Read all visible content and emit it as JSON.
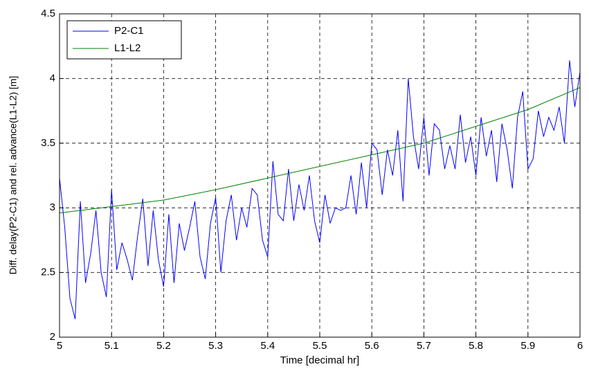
{
  "chart_data": {
    "type": "line",
    "xlabel": "Time [decimal hr]",
    "ylabel": "Diff. delay(P2-C1) and rel. advance(L1-L2)  [m]",
    "xlim": [
      5,
      6
    ],
    "xticks": [
      5,
      5.1,
      5.2,
      5.3,
      5.4,
      5.5,
      5.6,
      5.7,
      5.8,
      5.9,
      6
    ],
    "ylim": [
      2,
      4.5
    ],
    "yticks": [
      2,
      2.5,
      3,
      3.5,
      4,
      4.5
    ],
    "grid": true,
    "legend": "upper left",
    "series": [
      {
        "name": "P2-C1",
        "color": "#0000ff",
        "x": [
          5,
          5.01,
          5.02,
          5.03,
          5.04,
          5.05,
          5.06,
          5.07,
          5.08,
          5.09,
          5.1,
          5.11,
          5.12,
          5.13,
          5.14,
          5.15,
          5.16,
          5.17,
          5.18,
          5.19,
          5.2,
          5.21,
          5.22,
          5.23,
          5.24,
          5.25,
          5.26,
          5.27,
          5.28,
          5.29,
          5.3,
          5.31,
          5.32,
          5.33,
          5.34,
          5.35,
          5.36,
          5.37,
          5.38,
          5.39,
          5.4,
          5.41,
          5.42,
          5.43,
          5.44,
          5.45,
          5.46,
          5.47,
          5.48,
          5.49,
          5.5,
          5.51,
          5.52,
          5.53,
          5.54,
          5.55,
          5.56,
          5.57,
          5.58,
          5.59,
          5.6,
          5.61,
          5.62,
          5.63,
          5.64,
          5.65,
          5.66,
          5.67,
          5.68,
          5.69,
          5.7,
          5.71,
          5.72,
          5.73,
          5.74,
          5.75,
          5.76,
          5.77,
          5.78,
          5.79,
          5.8,
          5.81,
          5.82,
          5.83,
          5.84,
          5.85,
          5.86,
          5.87,
          5.88,
          5.89,
          5.9,
          5.91,
          5.92,
          5.93,
          5.94,
          5.95,
          5.96,
          5.97,
          5.98,
          5.99,
          6
        ],
        "values": [
          3.23,
          2.85,
          2.3,
          2.14,
          3.05,
          2.42,
          2.65,
          2.98,
          2.5,
          2.31,
          3.14,
          2.52,
          2.73,
          2.6,
          2.44,
          2.78,
          3.07,
          2.55,
          2.98,
          2.6,
          2.39,
          2.95,
          2.42,
          2.88,
          2.67,
          2.85,
          3.05,
          2.62,
          2.45,
          2.88,
          3.08,
          2.5,
          2.9,
          3.1,
          2.75,
          3.0,
          2.85,
          3.15,
          3.1,
          2.75,
          2.62,
          3.36,
          2.95,
          2.9,
          3.3,
          2.9,
          3.18,
          2.98,
          3.25,
          2.9,
          2.73,
          3.1,
          2.88,
          3.0,
          2.98,
          3.0,
          3.25,
          2.95,
          3.35,
          3.0,
          3.5,
          3.45,
          3.1,
          3.45,
          3.25,
          3.6,
          3.05,
          4.0,
          3.55,
          3.3,
          3.7,
          3.25,
          3.65,
          3.6,
          3.3,
          3.48,
          3.3,
          3.72,
          3.35,
          3.55,
          3.25,
          3.7,
          3.4,
          3.6,
          3.2,
          3.65,
          3.45,
          3.15,
          3.7,
          3.9,
          3.3,
          3.38,
          3.75,
          3.55,
          3.7,
          3.6,
          3.78,
          3.5,
          4.14,
          3.78,
          4.05
        ]
      },
      {
        "name": "L1-L2",
        "color": "#008000",
        "x": [
          5,
          5.1,
          5.2,
          5.3,
          5.4,
          5.5,
          5.6,
          5.7,
          5.8,
          5.9,
          6
        ],
        "values": [
          2.96,
          3.01,
          3.06,
          3.14,
          3.23,
          3.32,
          3.41,
          3.5,
          3.63,
          3.76,
          3.93
        ]
      }
    ]
  }
}
